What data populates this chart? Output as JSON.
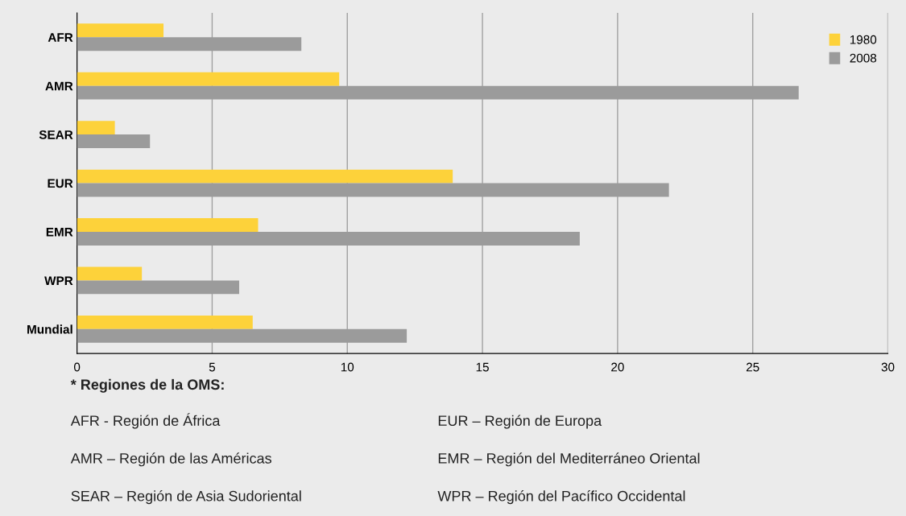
{
  "chart_data": {
    "type": "bar",
    "orientation": "horizontal",
    "categories": [
      "AFR",
      "AMR",
      "SEAR",
      "EUR",
      "EMR",
      "WPR",
      "Mundial"
    ],
    "series": [
      {
        "name": "1980",
        "color": "#fdd23a",
        "values": [
          3.2,
          9.7,
          1.4,
          13.9,
          6.7,
          2.4,
          6.5
        ]
      },
      {
        "name": "2008",
        "color": "#9b9b9b",
        "values": [
          8.3,
          26.7,
          2.7,
          21.9,
          18.6,
          6.0,
          12.2
        ]
      }
    ],
    "xlim": [
      0,
      30
    ],
    "xticks": [
      0,
      5,
      10,
      15,
      20,
      25,
      30
    ],
    "grid": "x",
    "legend": "top right",
    "annotations": [
      "* Regiones de la OMS:",
      "AFR - Región de África",
      "AMR – Región de las Américas",
      "SEAR – Región de Asia Sudoriental",
      "EUR – Región de Europa",
      "EMR – Región del Mediterráneo Oriental",
      "WPR – Región del Pacífico Occidental"
    ]
  }
}
